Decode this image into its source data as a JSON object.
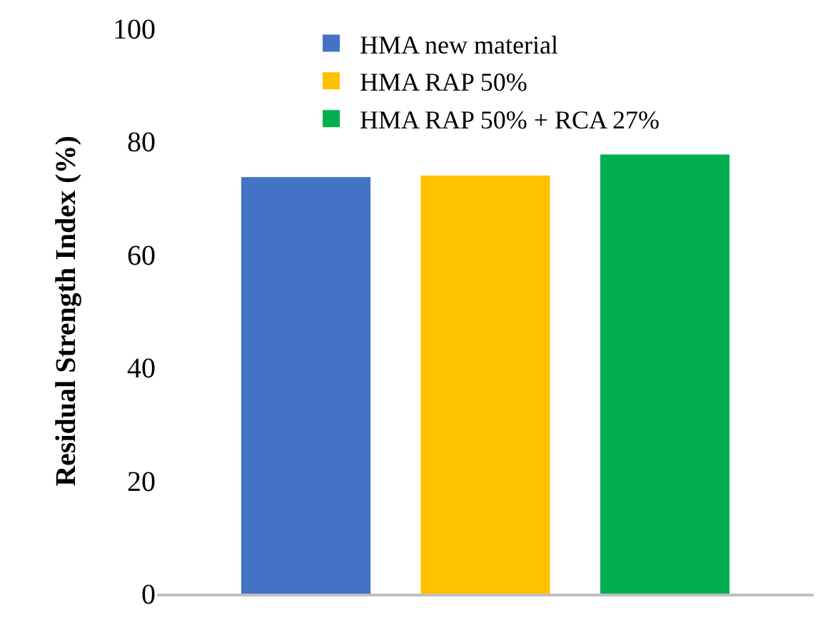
{
  "chart_data": {
    "type": "bar",
    "ylabel": "Residual Strength Index (%)",
    "categories": [
      null
    ],
    "series": [
      {
        "name": "HMA new material",
        "color": "#4472c4",
        "values": [
          73.7
        ]
      },
      {
        "name": "HMA RAP 50%",
        "color": "#ffc000",
        "values": [
          74.0
        ]
      },
      {
        "name": "HMA RAP 50% + RCA 27%",
        "color": "#00b050",
        "values": [
          77.7
        ]
      }
    ],
    "ylim": [
      0,
      100
    ],
    "yticks": [
      0,
      20,
      40,
      60,
      80,
      100
    ],
    "grid": false,
    "legend": "top",
    "tick_labels": "y"
  }
}
